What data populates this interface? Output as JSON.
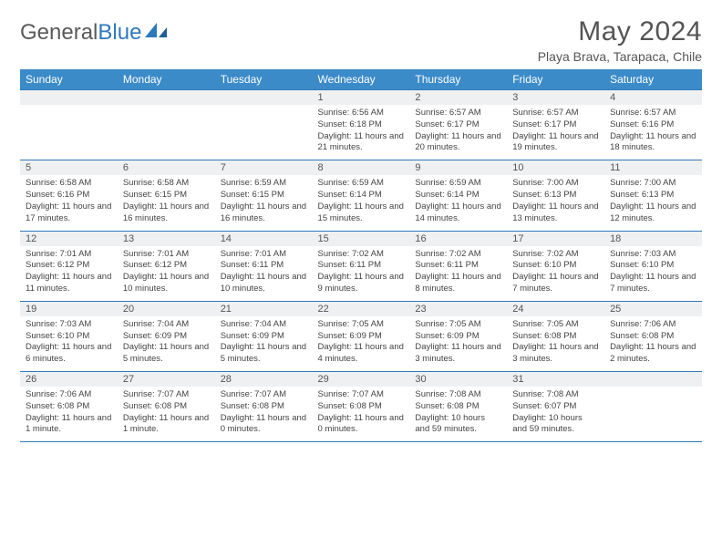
{
  "brand": {
    "part1": "General",
    "part2": "Blue"
  },
  "title": "May 2024",
  "location": "Playa Brava, Tarapaca, Chile",
  "header_bg": "#3b8bc9",
  "border_color": "#2e79bd",
  "daynum_bg": "#eef0f2",
  "text_color": "#555555",
  "dow": [
    "Sunday",
    "Monday",
    "Tuesday",
    "Wednesday",
    "Thursday",
    "Friday",
    "Saturday"
  ],
  "weeks": [
    [
      {
        "n": "",
        "sr": "",
        "ss": "",
        "dl": ""
      },
      {
        "n": "",
        "sr": "",
        "ss": "",
        "dl": ""
      },
      {
        "n": "",
        "sr": "",
        "ss": "",
        "dl": ""
      },
      {
        "n": "1",
        "sr": "Sunrise: 6:56 AM",
        "ss": "Sunset: 6:18 PM",
        "dl": "Daylight: 11 hours and 21 minutes."
      },
      {
        "n": "2",
        "sr": "Sunrise: 6:57 AM",
        "ss": "Sunset: 6:17 PM",
        "dl": "Daylight: 11 hours and 20 minutes."
      },
      {
        "n": "3",
        "sr": "Sunrise: 6:57 AM",
        "ss": "Sunset: 6:17 PM",
        "dl": "Daylight: 11 hours and 19 minutes."
      },
      {
        "n": "4",
        "sr": "Sunrise: 6:57 AM",
        "ss": "Sunset: 6:16 PM",
        "dl": "Daylight: 11 hours and 18 minutes."
      }
    ],
    [
      {
        "n": "5",
        "sr": "Sunrise: 6:58 AM",
        "ss": "Sunset: 6:16 PM",
        "dl": "Daylight: 11 hours and 17 minutes."
      },
      {
        "n": "6",
        "sr": "Sunrise: 6:58 AM",
        "ss": "Sunset: 6:15 PM",
        "dl": "Daylight: 11 hours and 16 minutes."
      },
      {
        "n": "7",
        "sr": "Sunrise: 6:59 AM",
        "ss": "Sunset: 6:15 PM",
        "dl": "Daylight: 11 hours and 16 minutes."
      },
      {
        "n": "8",
        "sr": "Sunrise: 6:59 AM",
        "ss": "Sunset: 6:14 PM",
        "dl": "Daylight: 11 hours and 15 minutes."
      },
      {
        "n": "9",
        "sr": "Sunrise: 6:59 AM",
        "ss": "Sunset: 6:14 PM",
        "dl": "Daylight: 11 hours and 14 minutes."
      },
      {
        "n": "10",
        "sr": "Sunrise: 7:00 AM",
        "ss": "Sunset: 6:13 PM",
        "dl": "Daylight: 11 hours and 13 minutes."
      },
      {
        "n": "11",
        "sr": "Sunrise: 7:00 AM",
        "ss": "Sunset: 6:13 PM",
        "dl": "Daylight: 11 hours and 12 minutes."
      }
    ],
    [
      {
        "n": "12",
        "sr": "Sunrise: 7:01 AM",
        "ss": "Sunset: 6:12 PM",
        "dl": "Daylight: 11 hours and 11 minutes."
      },
      {
        "n": "13",
        "sr": "Sunrise: 7:01 AM",
        "ss": "Sunset: 6:12 PM",
        "dl": "Daylight: 11 hours and 10 minutes."
      },
      {
        "n": "14",
        "sr": "Sunrise: 7:01 AM",
        "ss": "Sunset: 6:11 PM",
        "dl": "Daylight: 11 hours and 10 minutes."
      },
      {
        "n": "15",
        "sr": "Sunrise: 7:02 AM",
        "ss": "Sunset: 6:11 PM",
        "dl": "Daylight: 11 hours and 9 minutes."
      },
      {
        "n": "16",
        "sr": "Sunrise: 7:02 AM",
        "ss": "Sunset: 6:11 PM",
        "dl": "Daylight: 11 hours and 8 minutes."
      },
      {
        "n": "17",
        "sr": "Sunrise: 7:02 AM",
        "ss": "Sunset: 6:10 PM",
        "dl": "Daylight: 11 hours and 7 minutes."
      },
      {
        "n": "18",
        "sr": "Sunrise: 7:03 AM",
        "ss": "Sunset: 6:10 PM",
        "dl": "Daylight: 11 hours and 7 minutes."
      }
    ],
    [
      {
        "n": "19",
        "sr": "Sunrise: 7:03 AM",
        "ss": "Sunset: 6:10 PM",
        "dl": "Daylight: 11 hours and 6 minutes."
      },
      {
        "n": "20",
        "sr": "Sunrise: 7:04 AM",
        "ss": "Sunset: 6:09 PM",
        "dl": "Daylight: 11 hours and 5 minutes."
      },
      {
        "n": "21",
        "sr": "Sunrise: 7:04 AM",
        "ss": "Sunset: 6:09 PM",
        "dl": "Daylight: 11 hours and 5 minutes."
      },
      {
        "n": "22",
        "sr": "Sunrise: 7:05 AM",
        "ss": "Sunset: 6:09 PM",
        "dl": "Daylight: 11 hours and 4 minutes."
      },
      {
        "n": "23",
        "sr": "Sunrise: 7:05 AM",
        "ss": "Sunset: 6:09 PM",
        "dl": "Daylight: 11 hours and 3 minutes."
      },
      {
        "n": "24",
        "sr": "Sunrise: 7:05 AM",
        "ss": "Sunset: 6:08 PM",
        "dl": "Daylight: 11 hours and 3 minutes."
      },
      {
        "n": "25",
        "sr": "Sunrise: 7:06 AM",
        "ss": "Sunset: 6:08 PM",
        "dl": "Daylight: 11 hours and 2 minutes."
      }
    ],
    [
      {
        "n": "26",
        "sr": "Sunrise: 7:06 AM",
        "ss": "Sunset: 6:08 PM",
        "dl": "Daylight: 11 hours and 1 minute."
      },
      {
        "n": "27",
        "sr": "Sunrise: 7:07 AM",
        "ss": "Sunset: 6:08 PM",
        "dl": "Daylight: 11 hours and 1 minute."
      },
      {
        "n": "28",
        "sr": "Sunrise: 7:07 AM",
        "ss": "Sunset: 6:08 PM",
        "dl": "Daylight: 11 hours and 0 minutes."
      },
      {
        "n": "29",
        "sr": "Sunrise: 7:07 AM",
        "ss": "Sunset: 6:08 PM",
        "dl": "Daylight: 11 hours and 0 minutes."
      },
      {
        "n": "30",
        "sr": "Sunrise: 7:08 AM",
        "ss": "Sunset: 6:08 PM",
        "dl": "Daylight: 10 hours and 59 minutes."
      },
      {
        "n": "31",
        "sr": "Sunrise: 7:08 AM",
        "ss": "Sunset: 6:07 PM",
        "dl": "Daylight: 10 hours and 59 minutes."
      },
      {
        "n": "",
        "sr": "",
        "ss": "",
        "dl": ""
      }
    ]
  ]
}
